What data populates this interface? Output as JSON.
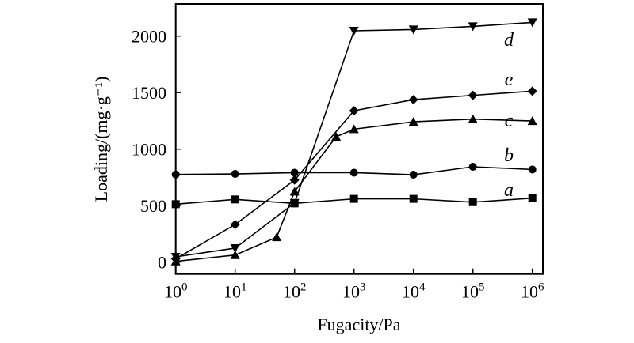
{
  "chart_data": {
    "type": "line",
    "title": "",
    "xlabel": "Fugacity/Pa",
    "ylabel": "Loading/(mg·g⁻¹)",
    "xscale": "log",
    "xlim": [
      1,
      1500000
    ],
    "ylim": [
      -100,
      2280
    ],
    "xticks": [
      {
        "value": 1,
        "base": "10",
        "exp": "0"
      },
      {
        "value": 10,
        "base": "10",
        "exp": "1"
      },
      {
        "value": 100,
        "base": "10",
        "exp": "2"
      },
      {
        "value": 1000,
        "base": "10",
        "exp": "3"
      },
      {
        "value": 10000,
        "base": "10",
        "exp": "4"
      },
      {
        "value": 100000,
        "base": "10",
        "exp": "5"
      },
      {
        "value": 1000000,
        "base": "10",
        "exp": "6"
      }
    ],
    "yticks": [
      "0",
      "500",
      "1000",
      "1500",
      "2000"
    ],
    "grid": false,
    "legend": "inline labels at right end of each series",
    "series": [
      {
        "name": "a",
        "marker": "square",
        "x": [
          1,
          10,
          100,
          1000,
          10000,
          100000,
          1000000
        ],
        "y": [
          513,
          555,
          520,
          560,
          560,
          531,
          566
        ]
      },
      {
        "name": "b",
        "marker": "circle",
        "x": [
          1,
          10,
          100,
          1000,
          10000,
          100000,
          1000000
        ],
        "y": [
          776,
          781,
          792,
          792,
          774,
          844,
          820
        ]
      },
      {
        "name": "c",
        "marker": "triangle-up",
        "x": [
          1,
          10,
          50,
          100,
          500,
          1000,
          10000,
          100000,
          1000000
        ],
        "y": [
          7,
          63,
          221,
          625,
          1110,
          1177,
          1242,
          1266,
          1249
        ]
      },
      {
        "name": "d",
        "marker": "triangle-down",
        "x": [
          1,
          10,
          100,
          1000,
          10000,
          100000,
          1000000
        ],
        "y": [
          47,
          124,
          524,
          2047,
          2058,
          2086,
          2121
        ]
      },
      {
        "name": "e",
        "marker": "diamond",
        "x": [
          1,
          10,
          100,
          1000,
          10000,
          100000,
          1000000
        ],
        "y": [
          30,
          333,
          727,
          1340,
          1438,
          1476,
          1513
        ]
      }
    ]
  }
}
